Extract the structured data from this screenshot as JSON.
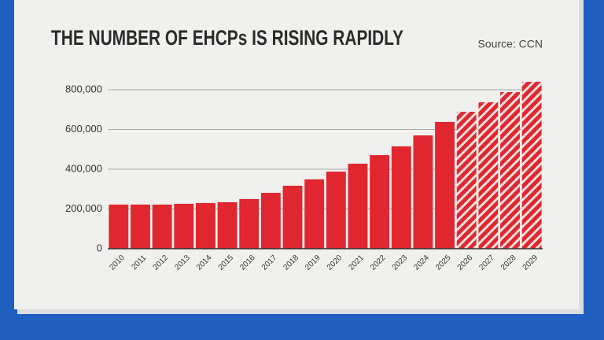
{
  "chart_data": {
    "type": "bar",
    "title": "THE NUMBER OF EHCPs IS RISING RAPIDLY",
    "source": "Source: CCN",
    "categories": [
      "2010",
      "2011",
      "2012",
      "2013",
      "2014",
      "2015",
      "2016",
      "2017",
      "2018",
      "2019",
      "2020",
      "2021",
      "2022",
      "2023",
      "2024",
      "2025",
      "2026",
      "2027",
      "2028",
      "2029"
    ],
    "values": [
      222000,
      222000,
      222000,
      226000,
      230000,
      234000,
      250000,
      281000,
      317000,
      349000,
      388000,
      428000,
      471000,
      515000,
      570000,
      638000,
      689000,
      737000,
      788000,
      840000
    ],
    "styles": [
      "solid",
      "solid",
      "solid",
      "solid",
      "solid",
      "solid",
      "solid",
      "solid",
      "solid",
      "solid",
      "solid",
      "solid",
      "solid",
      "solid",
      "solid",
      "solid",
      "hatched",
      "hatched",
      "hatched",
      "hatched"
    ],
    "color": "#e0262f",
    "ylim": [
      0,
      800000
    ],
    "yticks": [
      0,
      {
        "value": 200000,
        "label": "200,000"
      },
      {
        "value": 400000,
        "label": "400,000"
      },
      {
        "value": 600000,
        "label": "600,000"
      },
      {
        "value": 800000,
        "label": "800,000"
      }
    ],
    "grid": true
  }
}
